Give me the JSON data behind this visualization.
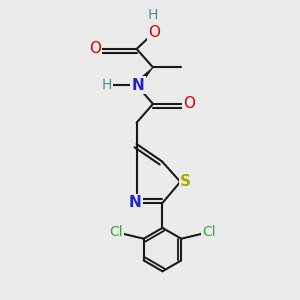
{
  "background_color": "#ebebeb",
  "bond_color": "#1a1a1a",
  "bond_width": 1.5,
  "figsize": [
    3.0,
    3.0
  ],
  "dpi": 100,
  "colors": {
    "O": "#dd0000",
    "N": "#2222cc",
    "S": "#aaaa00",
    "Cl": "#33aa33",
    "H": "#4a9090",
    "C": "#1a1a1a"
  }
}
